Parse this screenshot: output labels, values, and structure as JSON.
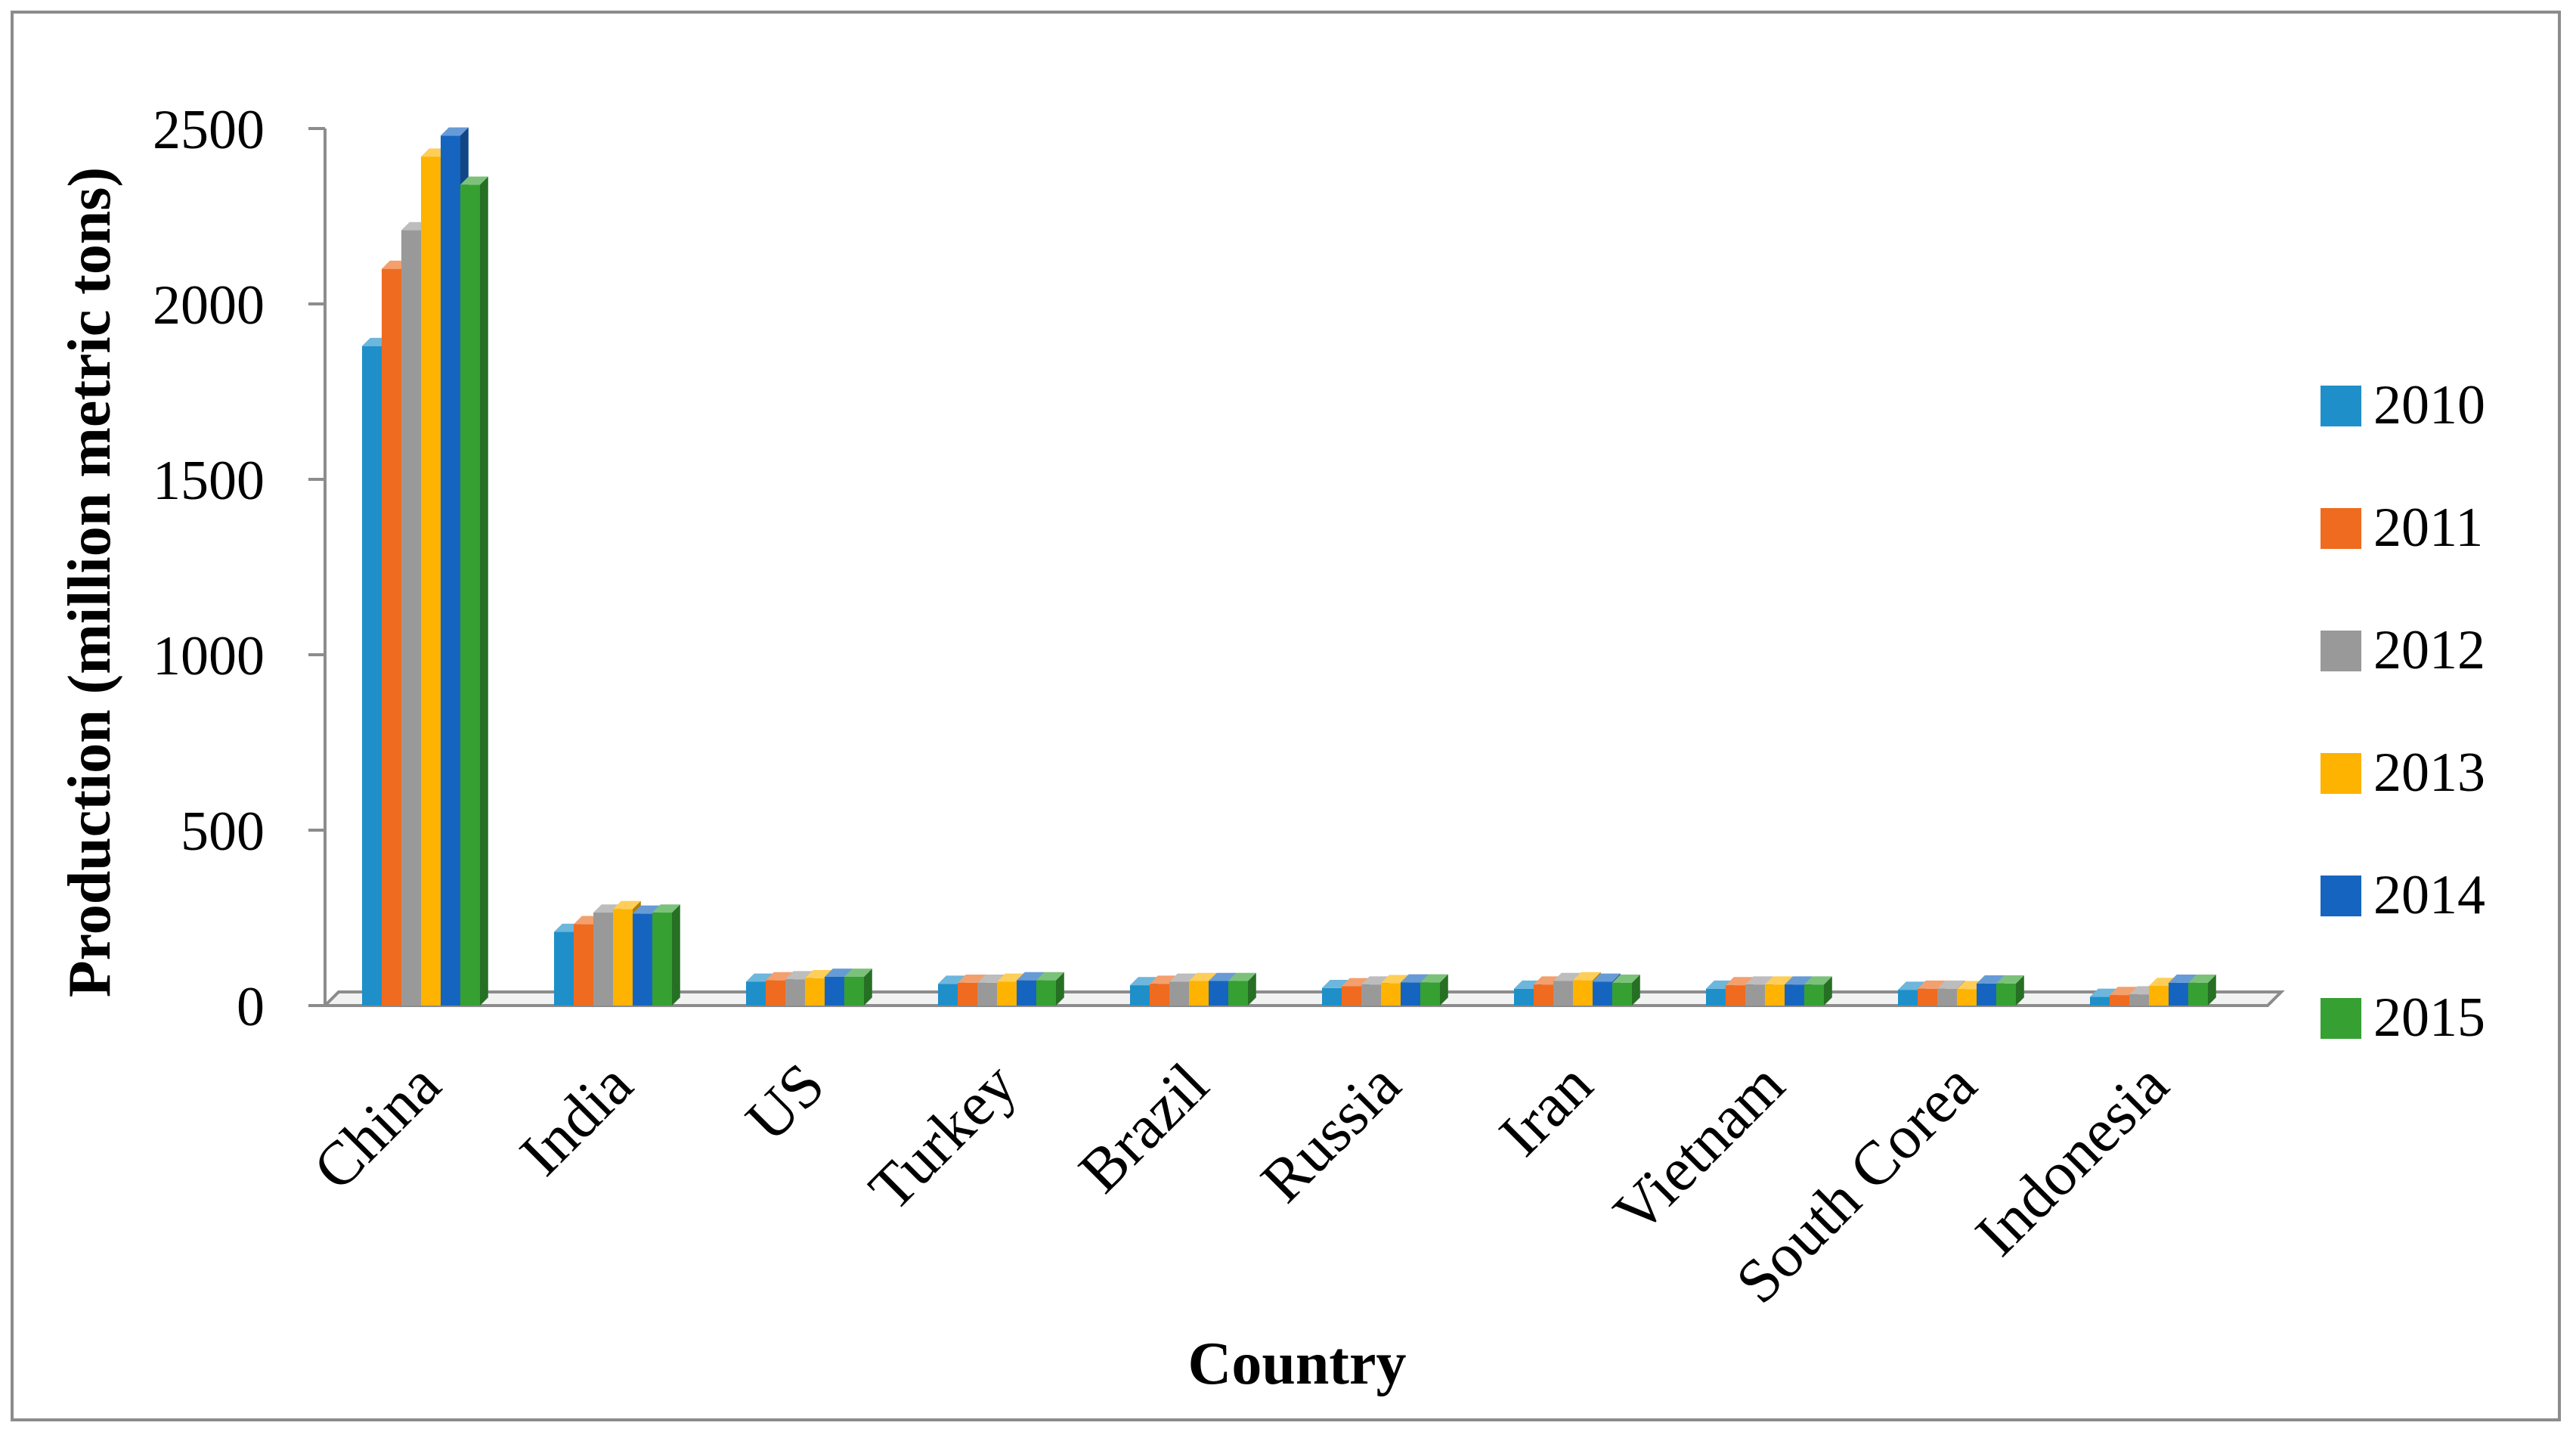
{
  "chart_data": {
    "type": "bar",
    "title": "",
    "xlabel": "Country",
    "ylabel": "Production (million metric tons)",
    "ylim": [
      0,
      2500
    ],
    "yticks": [
      0,
      500,
      1000,
      1500,
      2000,
      2500
    ],
    "grid": false,
    "legend_position": "right",
    "categories": [
      "China",
      "India",
      "US",
      "Turkey",
      "Brazil",
      "Russia",
      "Iran",
      "Vietnam",
      "South Corea",
      "Indonesia"
    ],
    "series": [
      {
        "name": "2010",
        "color": "#1f8fc9",
        "values": [
          1880,
          210,
          68,
          62,
          58,
          50,
          48,
          48,
          45,
          25
        ]
      },
      {
        "name": "2011",
        "color": "#ee6b20",
        "values": [
          2100,
          232,
          72,
          65,
          62,
          55,
          60,
          58,
          48,
          30
        ]
      },
      {
        "name": "2012",
        "color": "#999999",
        "values": [
          2210,
          265,
          75,
          65,
          68,
          60,
          70,
          60,
          48,
          32
        ]
      },
      {
        "name": "2013",
        "color": "#fdb300",
        "values": [
          2420,
          275,
          78,
          68,
          70,
          64,
          72,
          60,
          47,
          56
        ]
      },
      {
        "name": "2014",
        "color": "#1565c0",
        "values": [
          2480,
          262,
          82,
          72,
          70,
          66,
          68,
          60,
          63,
          65
        ]
      },
      {
        "name": "2015",
        "color": "#36a033",
        "values": [
          2340,
          265,
          82,
          72,
          70,
          66,
          65,
          60,
          63,
          65
        ]
      }
    ]
  }
}
